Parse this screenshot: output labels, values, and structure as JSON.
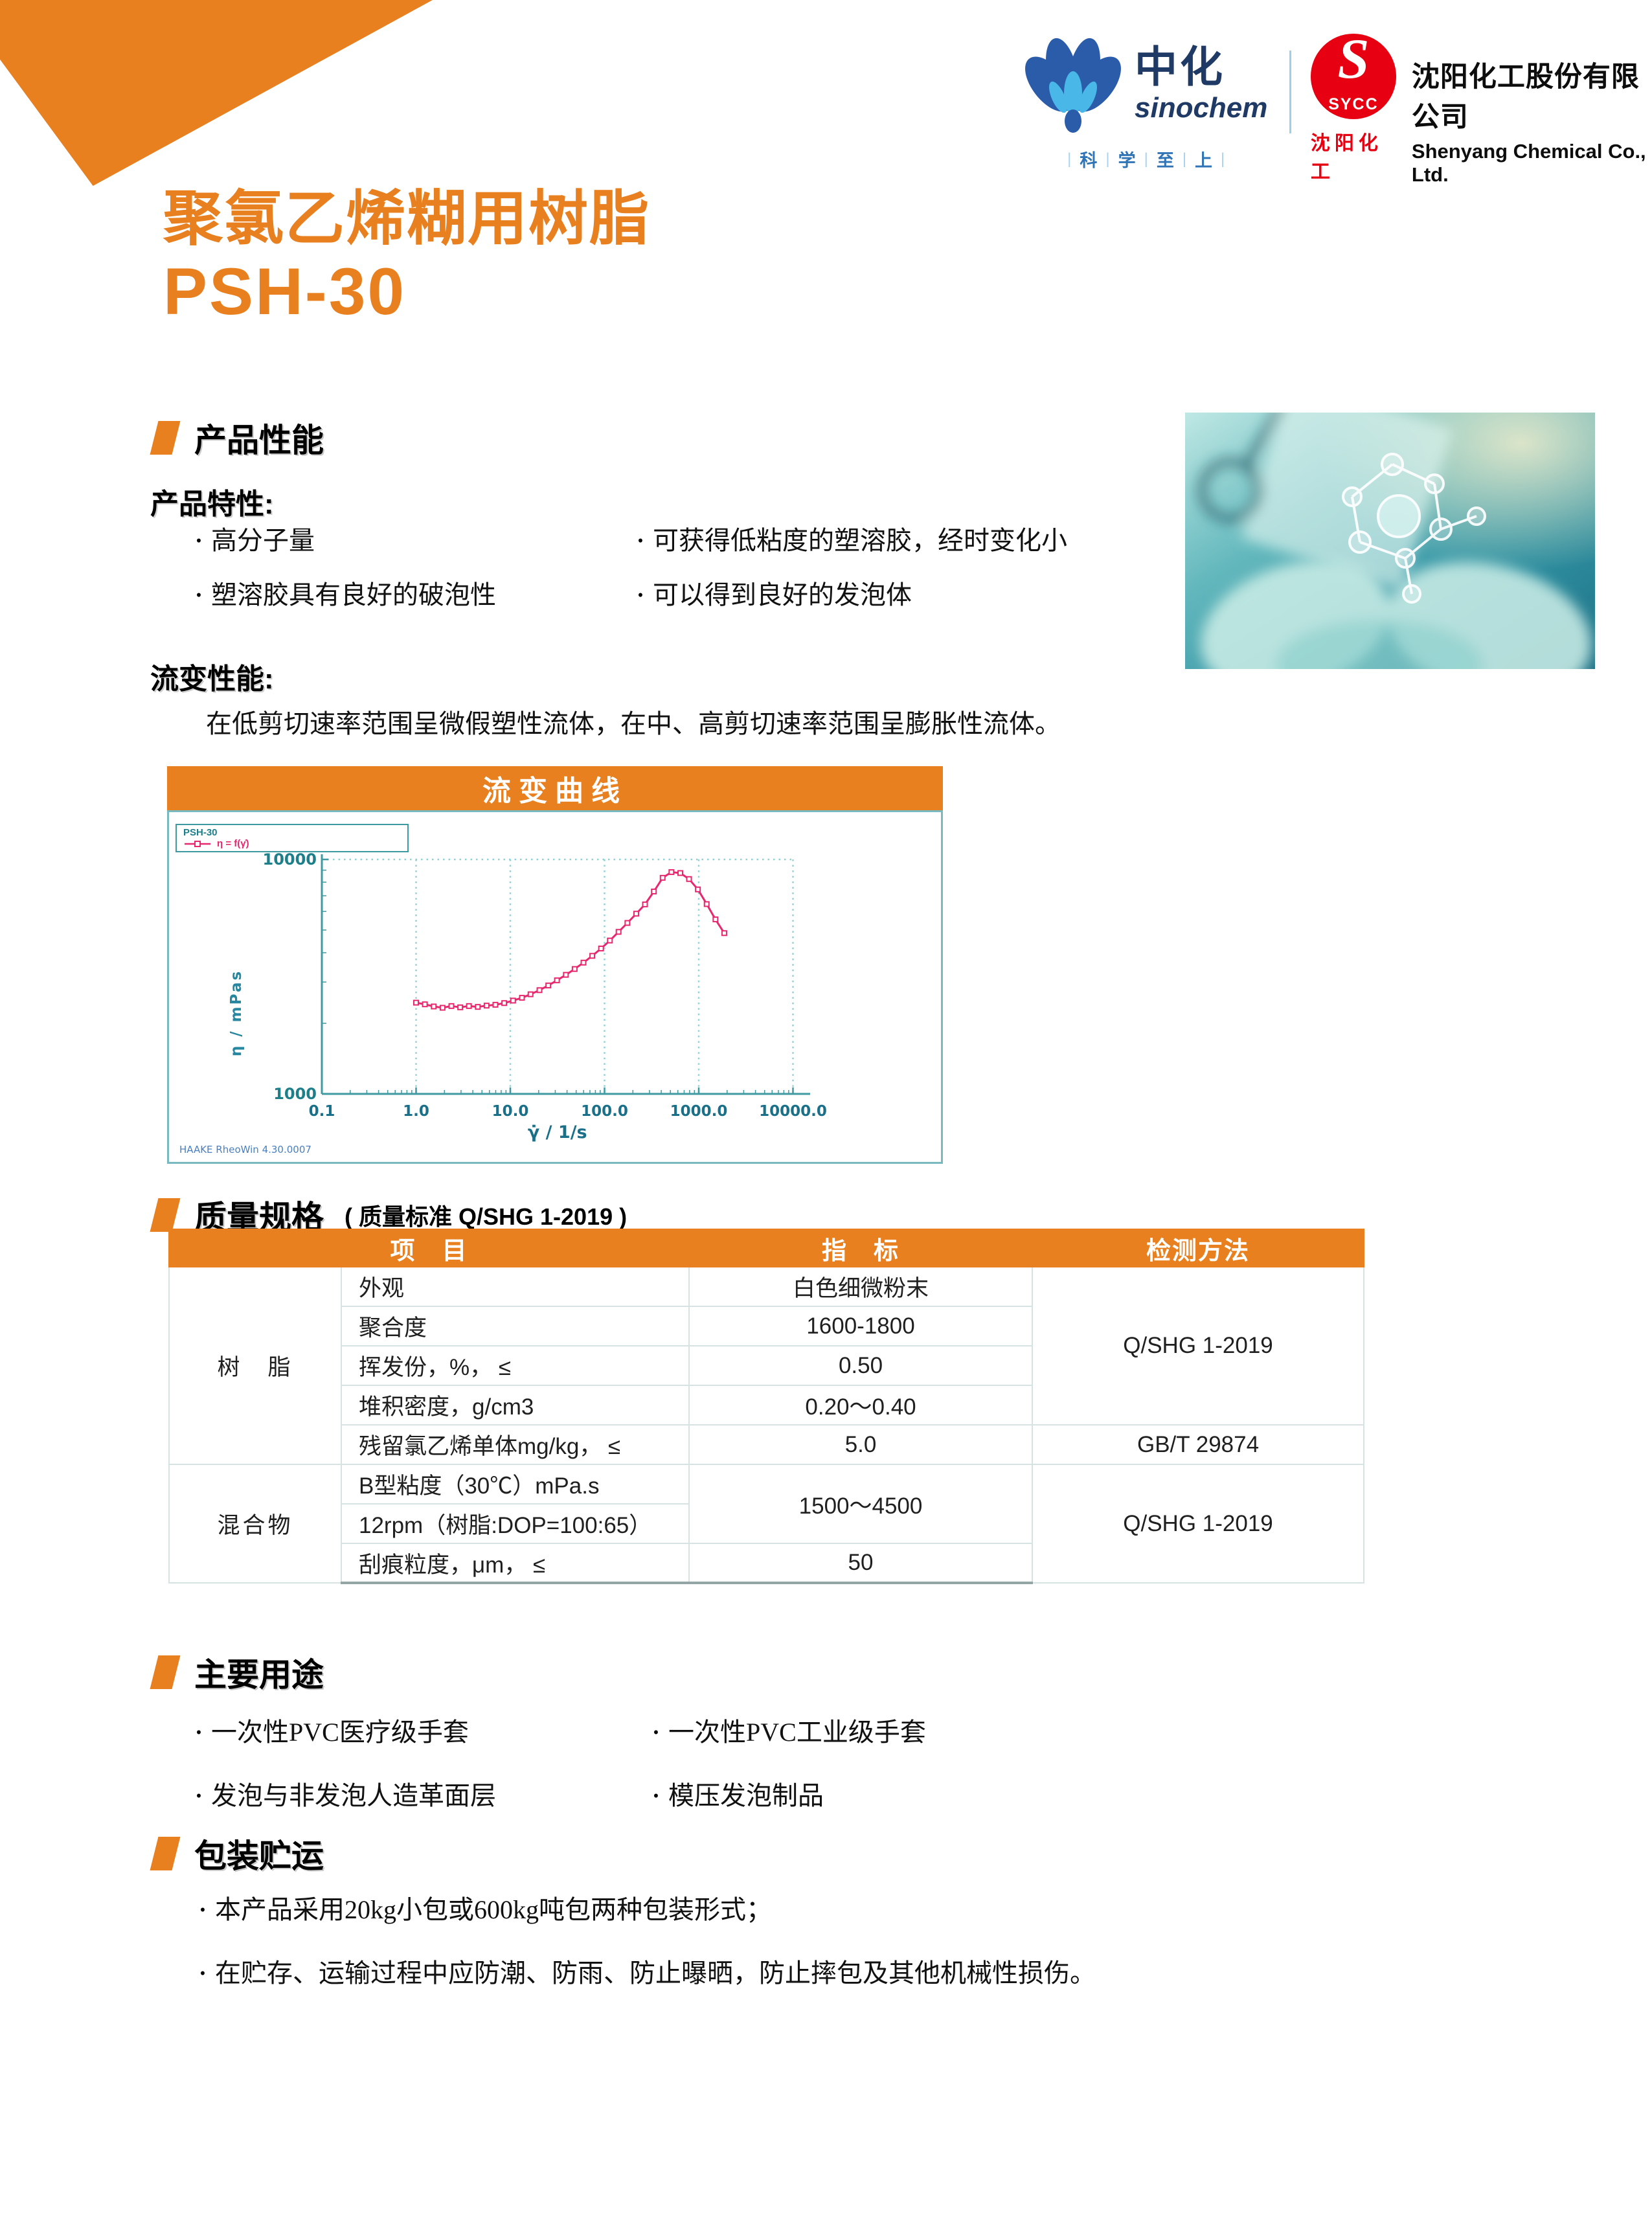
{
  "header": {
    "sinochem": {
      "name_cn": "中化",
      "name_en": "sinochem",
      "tagline": [
        "科",
        "学",
        "至",
        "上"
      ],
      "tagline_separator": "|"
    },
    "sycc": {
      "logo_s": "S",
      "logo_word": "SYCC",
      "caption": "沈阳化工"
    },
    "company": {
      "name_cn": "沈阳化工股份有限公司",
      "name_en": "Shenyang Chemical Co., Ltd."
    }
  },
  "title": {
    "line1": "聚氯乙烯糊用树脂",
    "line2": "PSH-30"
  },
  "performance": {
    "heading": "产品性能",
    "features_label": "产品特性:",
    "features": [
      {
        "left": "高分子量",
        "right": "可获得低粘度的塑溶胶，经时变化小"
      },
      {
        "left": "塑溶胶具有良好的破泡性",
        "right": "可以得到良好的发泡体"
      }
    ],
    "rheology_label": "流变性能:",
    "rheology_text": "在低剪切速率范围呈微假塑性流体，在中、高剪切速率范围呈膨胀性流体。"
  },
  "chart": {
    "banner": "流变曲线",
    "legend_title": "PSH-30",
    "legend_series": "η = f(γ̇)",
    "watermark": "HAAKE RheoWin 4.30.0007"
  },
  "chart_data": {
    "type": "line",
    "title": "流变曲线",
    "xlabel": "γ̇ / 1/s",
    "ylabel": "η / mPas",
    "x_scale": "log",
    "y_scale": "log",
    "xlim": [
      0.1,
      10000
    ],
    "ylim": [
      1000,
      10000
    ],
    "x_ticks": [
      "0.1",
      "1.0",
      "10.0",
      "100.0",
      "1000.0",
      "10000.0"
    ],
    "y_ticks": [
      "1000",
      "10000"
    ],
    "grid": "dotted-vertical-decades",
    "legend_position": "top-left",
    "series": [
      {
        "name": "η = f(γ̇)",
        "color": "#e8286e",
        "x": [
          1.0,
          1.24,
          1.54,
          1.91,
          2.37,
          2.94,
          3.64,
          4.52,
          5.6,
          6.95,
          8.62,
          10.7,
          13.3,
          16.4,
          20.4,
          25.3,
          31.3,
          38.9,
          48.2,
          59.8,
          74.1,
          91.9,
          114,
          141,
          175,
          217,
          269,
          334,
          414,
          513,
          637,
          789,
          979,
          1214,
          1505,
          1866
        ],
        "y": [
          2450,
          2410,
          2360,
          2330,
          2370,
          2340,
          2370,
          2350,
          2380,
          2400,
          2440,
          2500,
          2570,
          2660,
          2770,
          2900,
          3050,
          3220,
          3410,
          3630,
          3880,
          4170,
          4510,
          4910,
          5360,
          5870,
          6430,
          7300,
          8350,
          8830,
          8750,
          8250,
          7450,
          6450,
          5550,
          4850
        ]
      }
    ]
  },
  "quality": {
    "heading": "质量规格",
    "standard_note": "( 质量标准 Q/SHG 1-2019 )",
    "table": {
      "header": {
        "item": "项　目",
        "spec": "指　标",
        "method": "检测方法"
      },
      "resin_group": "树　脂",
      "mix_group": "混合物",
      "rows": {
        "appearance": {
          "p": "外观",
          "v": "白色细微粉末"
        },
        "dp": {
          "p": "聚合度",
          "v": "1600-1800"
        },
        "volatile": {
          "p": "挥发份，%， ≤",
          "v": "0.50"
        },
        "bulk": {
          "p": "堆积密度，g/cm3",
          "v": "0.20～0.40"
        },
        "vcm": {
          "p": "残留氯乙烯单体mg/kg， ≤",
          "v": "5.0",
          "m": "GB/T 29874"
        },
        "visc1": {
          "p": "B型粘度（30℃）mPa.s",
          "v": "1500～4500"
        },
        "visc2": {
          "p": "12rpm（树脂:DOP=100:65）"
        },
        "scratch": {
          "p": "刮痕粒度，μm， ≤",
          "v": "50"
        }
      },
      "method_resin": "Q/SHG 1-2019",
      "method_mix": "Q/SHG 1-2019"
    }
  },
  "uses": {
    "heading": "主要用途",
    "items": [
      {
        "left": "一次性PVC医疗级手套",
        "right": "一次性PVC工业级手套"
      },
      {
        "left": "发泡与非发泡人造革面层",
        "right": "模压发泡制品"
      }
    ]
  },
  "packaging": {
    "heading": "包装贮运",
    "items": [
      "本产品采用20kg小包或600kg吨包两种包装形式；",
      "在贮存、运输过程中应防潮、防雨、防止曝晒，防止摔包及其他机械性损伤。"
    ]
  }
}
